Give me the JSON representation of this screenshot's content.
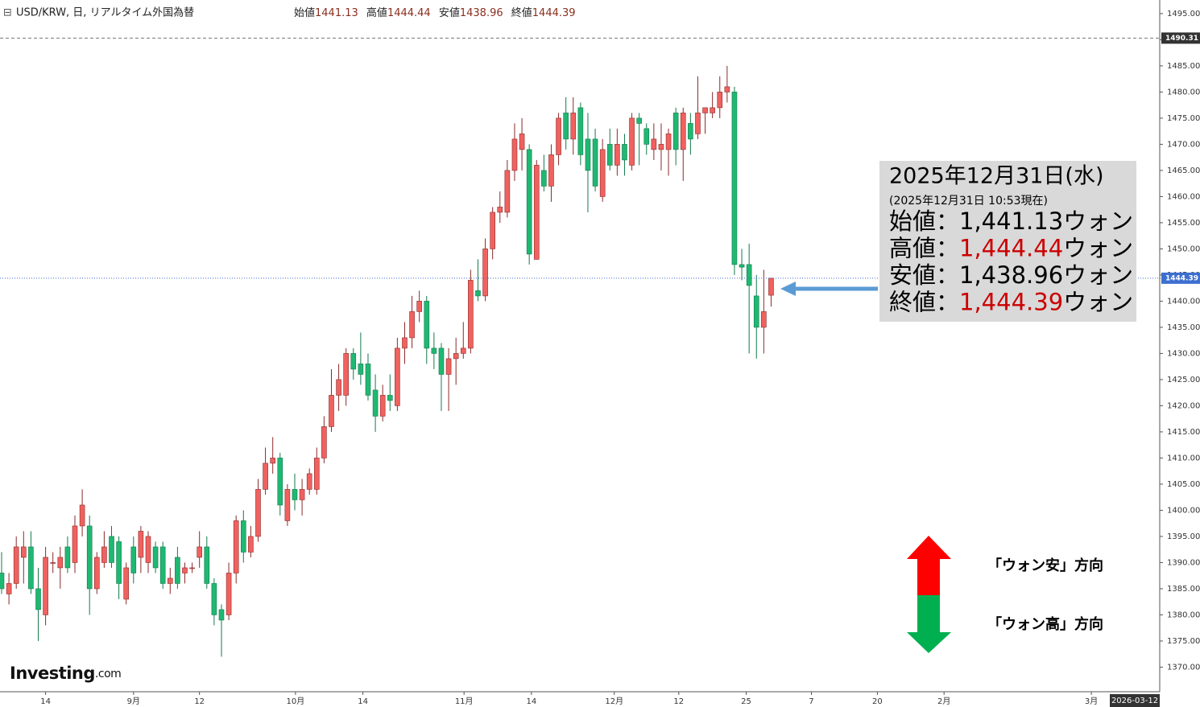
{
  "chart_data": {
    "type": "candlestick",
    "title": "USD/KRW, 日, リアルタイム外国為替",
    "header_labels": [
      "始値",
      "高値",
      "安値",
      "終値"
    ],
    "up_color": "#f0625f",
    "down_color": "#1fb872",
    "open": [
      1388,
      1384,
      1386,
      1391,
      1393,
      1385,
      1380,
      1390,
      1389,
      1393,
      1390,
      1397,
      1397,
      1385,
      1390,
      1395,
      1394,
      1383,
      1393,
      1391,
      1390,
      1393,
      1393,
      1386,
      1391,
      1388,
      1389,
      1391,
      1393,
      1386,
      1381,
      1380,
      1388,
      1398,
      1392,
      1395,
      1404,
      1409,
      1410,
      1398,
      1404,
      1402,
      1404,
      1404,
      1410,
      1416,
      1422,
      1422,
      1430,
      1428,
      1428,
      1423,
      1418,
      1422,
      1420,
      1431,
      1433,
      1438,
      1440,
      1431,
      1431,
      1426,
      1429,
      1430,
      1431,
      1442,
      1441,
      1450,
      1457,
      1457,
      1465,
      1469,
      1469,
      1448,
      1465,
      1462,
      1468,
      1476,
      1471,
      1477,
      1471,
      1471,
      1460,
      1470,
      1466,
      1470,
      1466,
      1475,
      1473,
      1469,
      1469,
      1469,
      1476,
      1469,
      1474,
      1472,
      1476,
      1476,
      1477,
      1480,
      1480,
      1447,
      1447,
      1441,
      1435,
      1441.13
    ],
    "high": [
      1392,
      1388,
      1395,
      1396,
      1396,
      1389,
      1393,
      1392,
      1393,
      1395,
      1399,
      1404,
      1399,
      1392,
      1396,
      1397,
      1395,
      1390,
      1395,
      1397,
      1396,
      1394,
      1394,
      1389,
      1393,
      1390,
      1390,
      1396,
      1395,
      1387,
      1382,
      1390,
      1399,
      1400,
      1397,
      1406,
      1412,
      1414,
      1411,
      1405,
      1407,
      1406,
      1408,
      1412,
      1418,
      1427,
      1428,
      1431,
      1431,
      1434,
      1430,
      1426,
      1424,
      1426,
      1433,
      1436,
      1441,
      1442,
      1441,
      1434,
      1432,
      1431,
      1433,
      1436,
      1446,
      1448,
      1452,
      1458,
      1461,
      1467,
      1474,
      1475,
      1470,
      1467,
      1468,
      1470,
      1476,
      1479,
      1479,
      1478,
      1476,
      1473,
      1471,
      1473,
      1473,
      1472,
      1476,
      1476,
      1474,
      1474,
      1474,
      1473,
      1477,
      1477,
      1476,
      1483,
      1477,
      1480,
      1483,
      1485,
      1481,
      1450,
      1451,
      1445,
      1446,
      1444.44
    ],
    "low": [
      1384,
      1382,
      1385,
      1386,
      1384,
      1375,
      1378,
      1388,
      1385,
      1388,
      1388,
      1395,
      1380,
      1384,
      1389,
      1389,
      1383,
      1382,
      1386,
      1388,
      1388,
      1388,
      1385,
      1384,
      1385,
      1386,
      1388,
      1389,
      1385,
      1378,
      1372,
      1379,
      1386,
      1390,
      1391,
      1394,
      1403,
      1407,
      1399,
      1397,
      1400,
      1399,
      1403,
      1403,
      1409,
      1415,
      1419,
      1420,
      1425,
      1424,
      1421,
      1415,
      1417,
      1419,
      1419,
      1428,
      1431,
      1436,
      1428,
      1427,
      1419,
      1419,
      1424,
      1429,
      1430,
      1440,
      1440,
      1448,
      1455,
      1456,
      1463,
      1465,
      1447,
      1448,
      1461,
      1459,
      1466,
      1469,
      1468,
      1466,
      1457,
      1461,
      1459,
      1465,
      1464,
      1464,
      1465,
      1466,
      1468,
      1467,
      1465,
      1464,
      1466,
      1463,
      1468,
      1471,
      1472,
      1475,
      1475,
      1478,
      1445,
      1444,
      1430,
      1429,
      1430,
      1438.96
    ],
    "close": [
      1385,
      1386,
      1393,
      1393,
      1385,
      1381,
      1391,
      1390,
      1391,
      1389,
      1397,
      1401,
      1385,
      1391,
      1393,
      1390,
      1386,
      1389,
      1388,
      1396,
      1395,
      1389,
      1386,
      1387,
      1386,
      1389,
      1389,
      1393,
      1386,
      1380,
      1379,
      1388,
      1398,
      1392,
      1395,
      1404,
      1409,
      1410,
      1401,
      1404,
      1402,
      1404,
      1407,
      1410,
      1416,
      1422,
      1425,
      1430,
      1427,
      1426,
      1422,
      1418,
      1422,
      1421,
      1431,
      1433,
      1438,
      1440,
      1431,
      1430,
      1426,
      1429,
      1430,
      1431,
      1444,
      1441,
      1450,
      1457,
      1458,
      1465,
      1471,
      1472,
      1449,
      1466,
      1462,
      1468,
      1475,
      1471,
      1476,
      1468,
      1465,
      1462,
      1469,
      1466,
      1470,
      1467,
      1475,
      1474,
      1470,
      1471,
      1470,
      1472,
      1469,
      1476,
      1471,
      1476,
      1477,
      1477,
      1480,
      1481,
      1447,
      1446.5,
      1443,
      1435,
      1438,
      1444.39
    ],
    "xlim": [
      -0.22,
      158.03
    ],
    "xticks": [
      {
        "value": 6,
        "label": "14"
      },
      {
        "value": 18,
        "label": "9月"
      },
      {
        "value": 27,
        "label": "12"
      },
      {
        "value": 40.1,
        "label": "10月"
      },
      {
        "value": 49.3,
        "label": "14"
      },
      {
        "value": 63.1,
        "label": "11月"
      },
      {
        "value": 72.3,
        "label": "14"
      },
      {
        "value": 83.6,
        "label": "12月"
      },
      {
        "value": 92.4,
        "label": "12"
      },
      {
        "value": 101.6,
        "label": "25"
      },
      {
        "value": 110.5,
        "label": "7"
      },
      {
        "value": 119.5,
        "label": "20"
      },
      {
        "value": 128.6,
        "label": "2月"
      },
      {
        "value": 148.7,
        "label": "3月"
      }
    ],
    "cursor_date": "2026-03-12",
    "ylim": [
      1365.3,
      1497.6
    ],
    "yticks": [
      {
        "value": 1370,
        "label": "1370.00"
      },
      {
        "value": 1375,
        "label": "1375.00"
      },
      {
        "value": 1380,
        "label": "1380.00"
      },
      {
        "value": 1385,
        "label": "1385.00"
      },
      {
        "value": 1390,
        "label": "1390.00"
      },
      {
        "value": 1395,
        "label": "1395.00"
      },
      {
        "value": 1400,
        "label": "1400.00"
      },
      {
        "value": 1405,
        "label": "1405.00"
      },
      {
        "value": 1410,
        "label": "1410.00"
      },
      {
        "value": 1415,
        "label": "1415.00"
      },
      {
        "value": 1420,
        "label": "1420.00"
      },
      {
        "value": 1425,
        "label": "1425.00"
      },
      {
        "value": 1430,
        "label": "1430.00"
      },
      {
        "value": 1435,
        "label": "1435.00"
      },
      {
        "value": 1440,
        "label": "1440.00"
      },
      {
        "value": 1445,
        "label": "1445.00"
      },
      {
        "value": 1450,
        "label": "1450.00"
      },
      {
        "value": 1455,
        "label": "1455.00"
      },
      {
        "value": 1460,
        "label": "1460.00"
      },
      {
        "value": 1465,
        "label": "1465.00"
      },
      {
        "value": 1470,
        "label": "1470.00"
      },
      {
        "value": 1475,
        "label": "1475.00"
      },
      {
        "value": 1480,
        "label": "1480.00"
      },
      {
        "value": 1485,
        "label": "1485.00"
      },
      {
        "value": 1490,
        "label": "1490.00"
      },
      {
        "value": 1495,
        "label": "1495.00"
      }
    ],
    "hline": 1490.31,
    "grid": false,
    "annotation": {
      "title": "2025年12月31日(水)",
      "subtitle": "(2025年12月31日 10:53現在)",
      "rows": [
        {
          "label": "始値：",
          "value": "1,441.13",
          "unit": "ウォン",
          "color": "#000000"
        },
        {
          "label": "高値：",
          "value": "1,444.44",
          "unit": "ウォン",
          "color": "#cc0000"
        },
        {
          "label": "安値：",
          "value": "1,438.96",
          "unit": "ウォン",
          "color": "#000000"
        },
        {
          "label": "終値：",
          "value": "1,444.39",
          "unit": "ウォン",
          "color": "#cc0000"
        }
      ]
    },
    "direction_up": "「ウォン安」方向",
    "direction_down": "「ウォン高」方向",
    "logo": "Investing",
    "logo_suffix": ".com"
  }
}
